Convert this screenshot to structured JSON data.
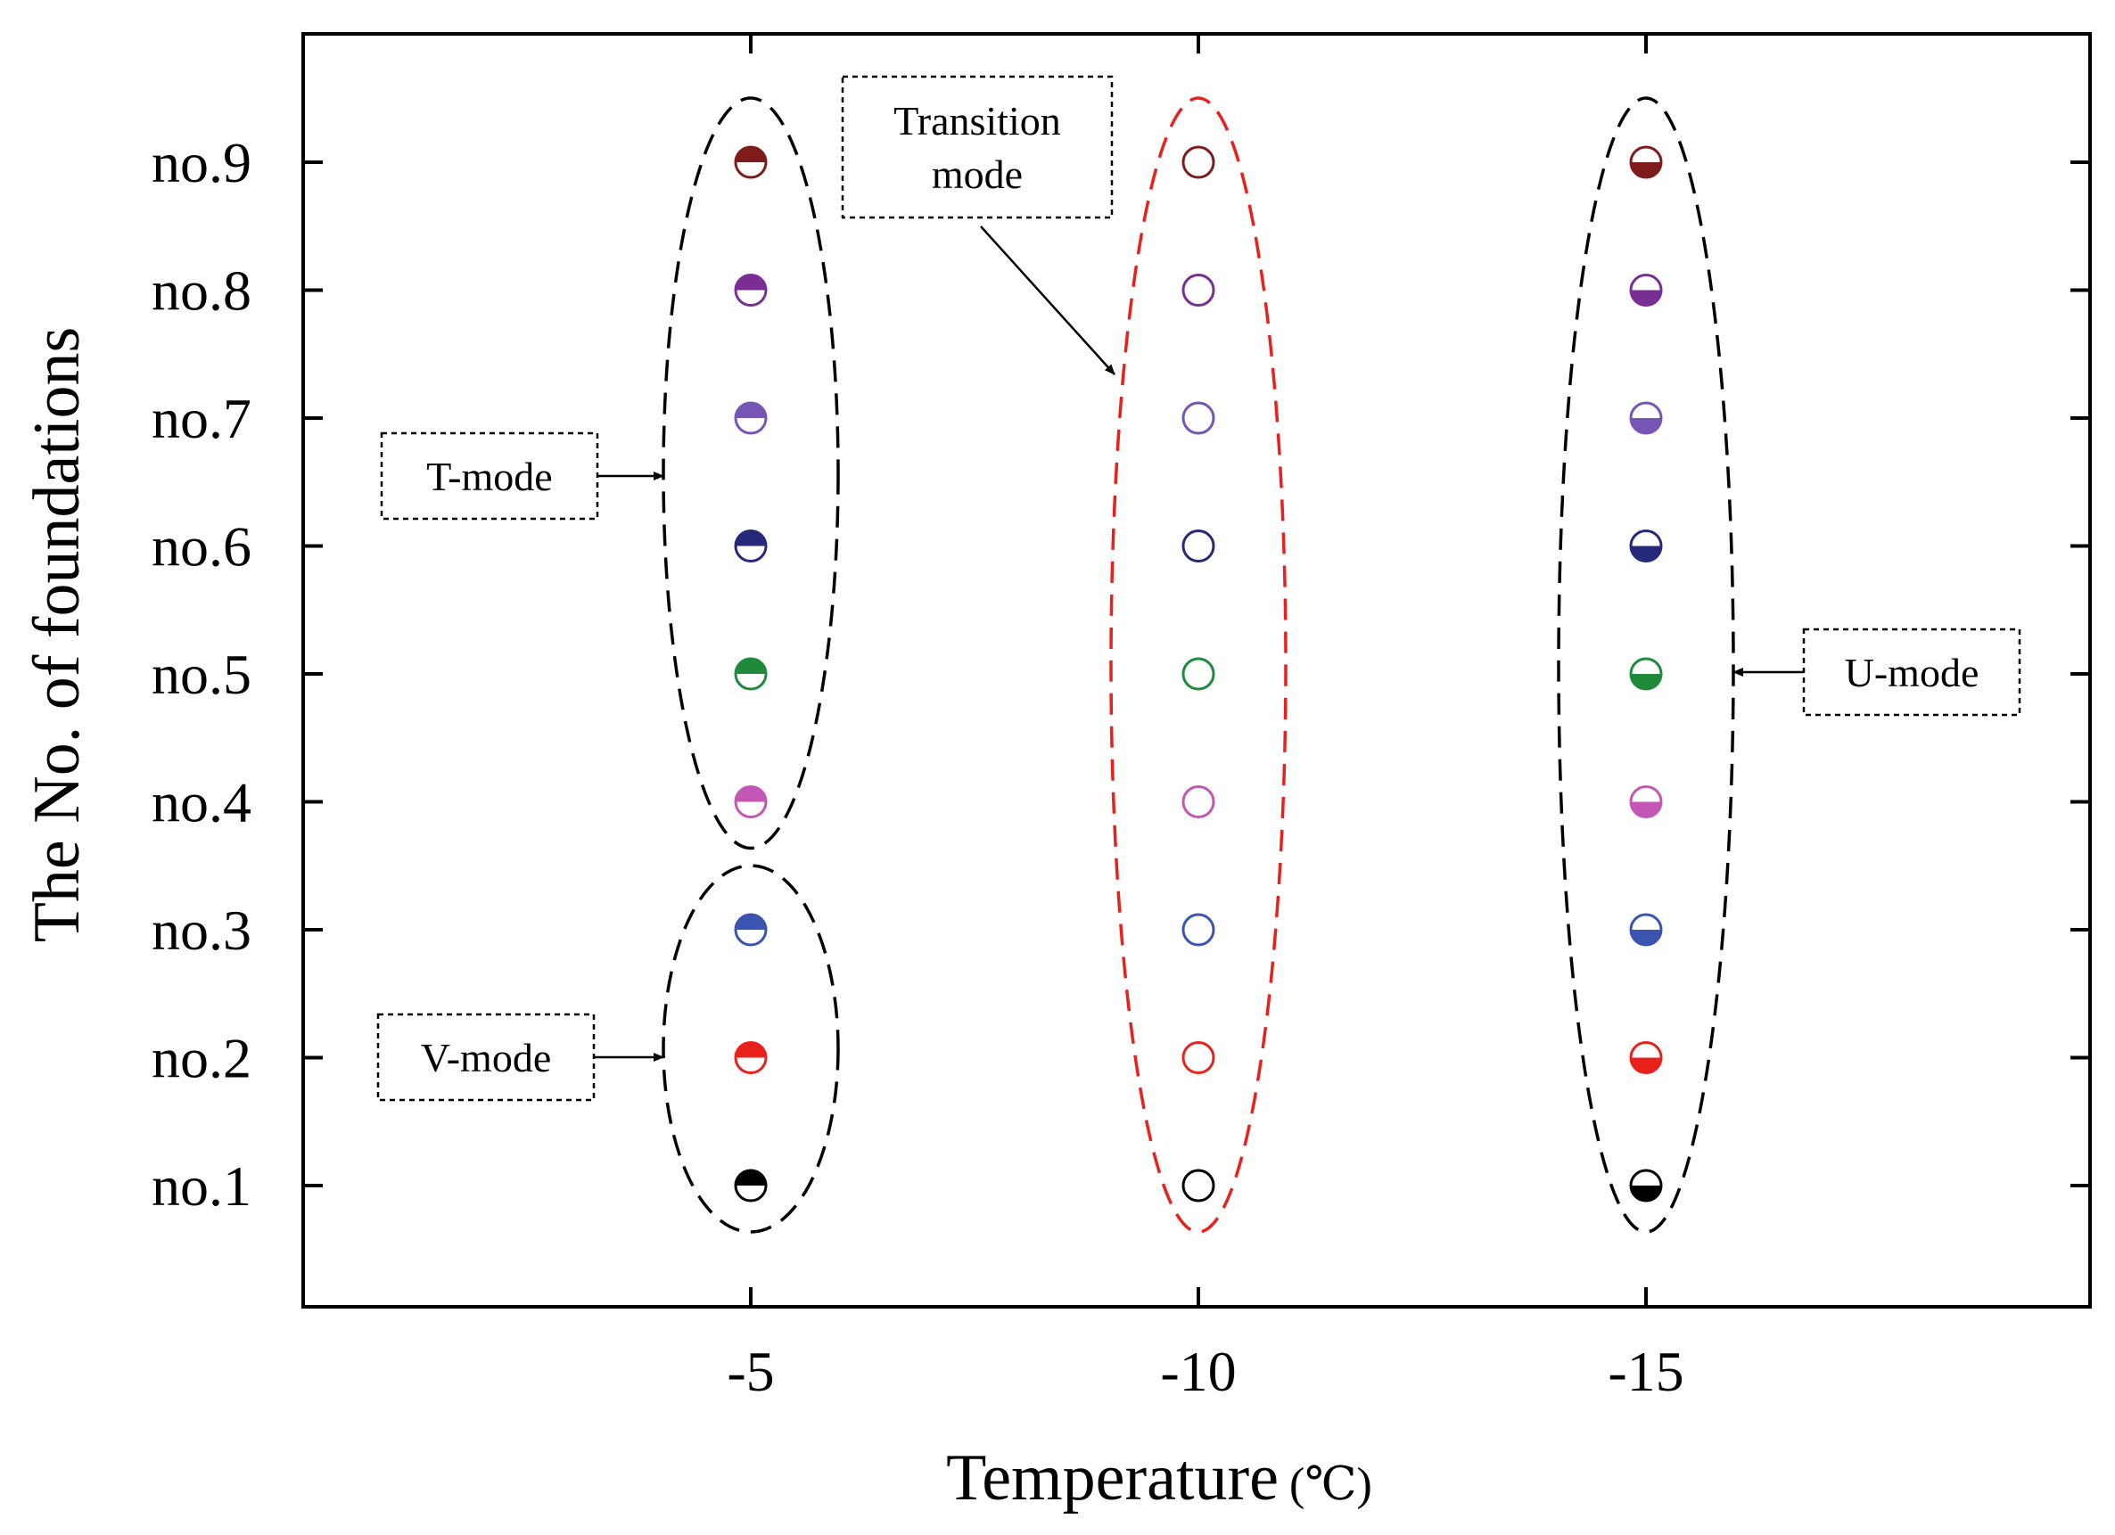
{
  "chart_data": {
    "type": "scatter",
    "xlabel": "Temperature",
    "xlabel_unit": "(℃)",
    "ylabel": "The No. of  foundations",
    "x_categories": [
      "-5",
      "-10",
      "-15"
    ],
    "y_categories": [
      "no.1",
      "no.2",
      "no.3",
      "no.4",
      "no.5",
      "no.6",
      "no.7",
      "no.8",
      "no.9"
    ],
    "series": [
      {
        "name": "no.1",
        "color": "#000000"
      },
      {
        "name": "no.2",
        "color": "#e8211c"
      },
      {
        "name": "no.3",
        "color": "#3a55b0"
      },
      {
        "name": "no.4",
        "color": "#c456b6"
      },
      {
        "name": "no.5",
        "color": "#1f8a3a"
      },
      {
        "name": "no.6",
        "color": "#26287a"
      },
      {
        "name": "no.7",
        "color": "#7655b4"
      },
      {
        "name": "no.8",
        "color": "#7a2d92"
      },
      {
        "name": "no.9",
        "color": "#7e1b1b"
      }
    ],
    "columns": [
      {
        "temperature": "-5",
        "marker": "half-filled-top"
      },
      {
        "temperature": "-10",
        "marker": "hollow"
      },
      {
        "temperature": "-15",
        "marker": "half-filled-bottom"
      }
    ],
    "groups": [
      {
        "label": "T-mode",
        "temperature": "-5",
        "from": "no.4",
        "to": "no.9",
        "color": "#000000"
      },
      {
        "label": "V-mode",
        "temperature": "-5",
        "from": "no.1",
        "to": "no.3",
        "color": "#000000"
      },
      {
        "label": "Transition mode",
        "lines": [
          "Transition",
          "mode"
        ],
        "temperature": "-10",
        "from": "no.1",
        "to": "no.9",
        "color": "#e8211c"
      },
      {
        "label": "U-mode",
        "temperature": "-15",
        "from": "no.1",
        "to": "no.9",
        "color": "#000000"
      }
    ]
  }
}
